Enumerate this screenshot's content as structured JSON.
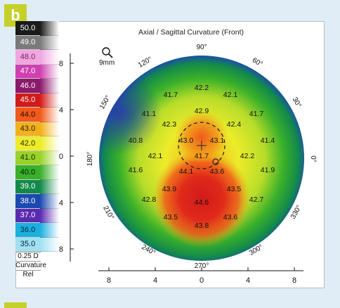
{
  "badge": "b",
  "title": "Axial / Sagittal Curvature (Front)",
  "zoom_label": "9mm",
  "scale": {
    "rows": [
      {
        "label": "50.0",
        "color": "#1a1a1a",
        "text": "#ffffff"
      },
      {
        "label": "49.0",
        "color": "#7a7a7a",
        "text": "#ffffff"
      },
      {
        "label": "48.0",
        "color": "#f0a7e0",
        "text": "#7a1a6a"
      },
      {
        "label": "47.0",
        "color": "#d040b0",
        "text": "#ffffff"
      },
      {
        "label": "46.0",
        "color": "#8a1a6a",
        "text": "#ffffff"
      },
      {
        "label": "45.0",
        "color": "#d21a1a",
        "text": "#ffffff"
      },
      {
        "label": "44.0",
        "color": "#f05a1a",
        "text": "#2a0a00"
      },
      {
        "label": "43.0",
        "color": "#f2b01a",
        "text": "#2a1a00"
      },
      {
        "label": "42.0",
        "color": "#ecec2a",
        "text": "#2a2a00"
      },
      {
        "label": "41.0",
        "color": "#9ad22a",
        "text": "#102a00"
      },
      {
        "label": "40.0",
        "color": "#3ab02a",
        "text": "#002000"
      },
      {
        "label": "39.0",
        "color": "#138a4a",
        "text": "#ffffff"
      },
      {
        "label": "38.0",
        "color": "#1a4ab0",
        "text": "#ffffff"
      },
      {
        "label": "37.0",
        "color": "#5a2ab0",
        "text": "#ffffff"
      },
      {
        "label": "36.0",
        "color": "#1ab0e0",
        "text": "#002a3a"
      },
      {
        "label": "35.0",
        "color": "#a0e0f0",
        "text": "#002a3a"
      }
    ],
    "step": "0.25 D",
    "footer1": "Curvature",
    "footer2": "Rel"
  },
  "axis": {
    "x_ticks": [
      "8",
      "4",
      "0",
      "4",
      "8"
    ],
    "y_ticks": [
      "8",
      "4",
      "0",
      "4",
      "8"
    ]
  },
  "angles": [
    "90°",
    "60°",
    "30°",
    "0°",
    "330°",
    "300°",
    "270°",
    "240°",
    "210°",
    "180°",
    "150°",
    "120°"
  ],
  "values": [
    "42.2",
    "41.7",
    "42.1",
    "42.9",
    "41.1",
    "42.3",
    "42.4",
    "41.7",
    "43.0",
    "43.1",
    "40.8",
    "41.4",
    "42.1",
    "41.7",
    "42.2",
    "41.6",
    "44.1",
    "43.6",
    "41.9",
    "43.9",
    "43.5",
    "42.8",
    "44.6",
    "42.7",
    "43.5",
    "43.8",
    "43.6"
  ]
}
